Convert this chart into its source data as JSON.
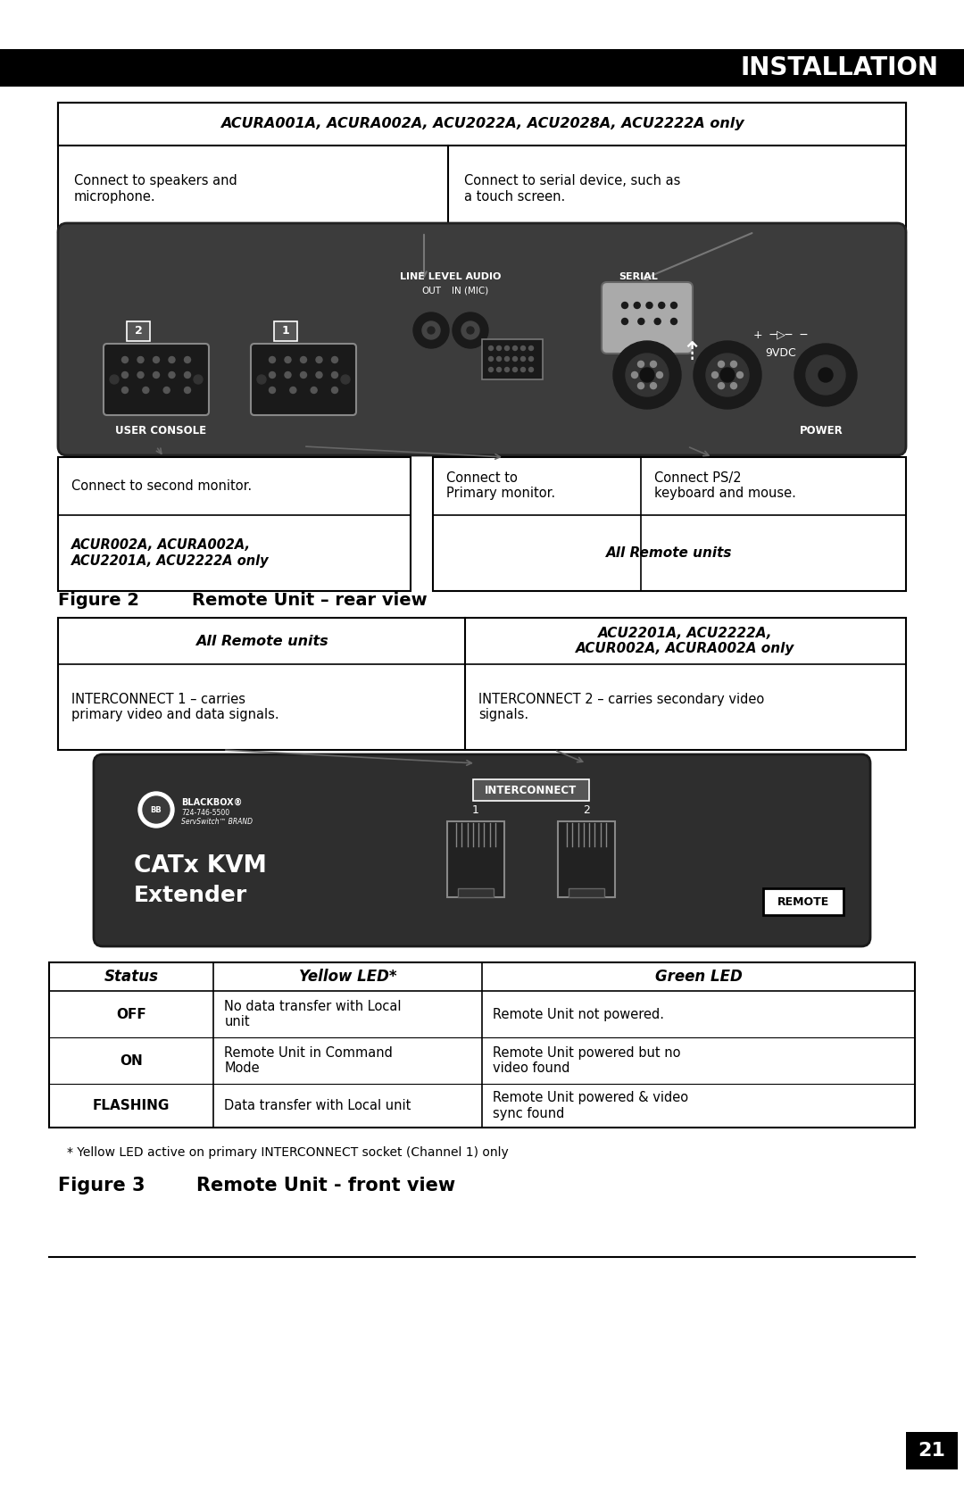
{
  "title": "INSTALLATION",
  "page_number": "21",
  "bg_color": "#ffffff",
  "header_bg": "#000000",
  "header_text_color": "#ffffff",
  "header_text": "INSTALLATION",
  "top_box_italic_text": "ACURA001A, ACURA002A, ACU2022A, ACU2028A, ACU2222A only",
  "top_box_left_text": "Connect to speakers and\nmicrophone.",
  "top_box_right_text": "Connect to serial device, such as\na touch screen.",
  "fig2_caption_label": "Figure 2",
  "fig2_caption_text": "Remote Unit – rear view",
  "mid_box_left_italic": "All Remote units",
  "mid_box_left_text": "INTERCONNECT 1 – carries\nprimary video and data signals.",
  "mid_box_right_italic": "ACU2201A, ACU2222A,\nACUR002A, ACURA002A only",
  "mid_box_right_text": "INTERCONNECT 2 – carries secondary video\nsignals.",
  "bottom_left_box_italic": "ACUR002A, ACURA002A,\nACU2201A, ACU2222A only",
  "bottom_left_box_text": "Connect to second monitor.",
  "bottom_mid_box_text": "Connect to\nPrimary monitor.",
  "bottom_right_box_italic": "All Remote units",
  "bottom_right_box_text": "Connect PS/2\nkeyboard and mouse.",
  "status_col": "Status",
  "yellow_col": "Yellow LED*",
  "green_col": "Green LED",
  "status_rows": [
    [
      "OFF",
      "No data transfer with Local\nunit",
      "Remote Unit not powered."
    ],
    [
      "ON",
      "Remote Unit in Command\nMode",
      "Remote Unit powered but no\nvideo found"
    ],
    [
      "FLASHING",
      "Data transfer with Local unit",
      "Remote Unit powered & video\nsync found"
    ]
  ],
  "footnote": "* Yellow LED active on primary INTERCONNECT socket (Channel 1) only",
  "fig3_caption_label": "Figure 3",
  "fig3_caption_text": "Remote Unit - front view",
  "device_bg": "#3a3a3a"
}
